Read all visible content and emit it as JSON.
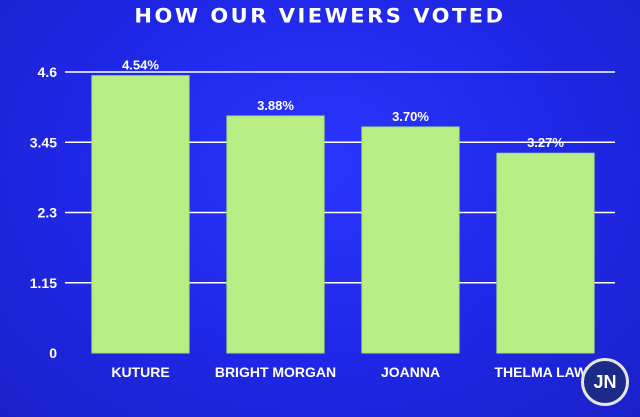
{
  "chart_data": {
    "type": "bar",
    "title": "HOW OUR VIEWERS VOTED",
    "xlabel": "",
    "ylabel": "",
    "categories": [
      "KUTURE",
      "BRIGHT MORGAN",
      "JOANNA",
      "THELMA LAWS"
    ],
    "values": [
      4.54,
      3.88,
      3.7,
      3.27
    ],
    "data_labels": [
      "4.54%",
      "3.88%",
      "3.70%",
      "3.27%"
    ],
    "ylim": [
      0,
      4.6
    ],
    "yticks": [
      0,
      1.15,
      2.3,
      3.45,
      4.6
    ],
    "ytick_labels": [
      "0",
      "1.15",
      "2.3",
      "3.45",
      "4.6"
    ],
    "grid": true,
    "legend": "none",
    "colors": {
      "bar": "#b9ee84",
      "background": "#2129e8",
      "text": "#ffffff",
      "grid": "#ffffff"
    }
  },
  "watermark": {
    "text": "JN"
  }
}
